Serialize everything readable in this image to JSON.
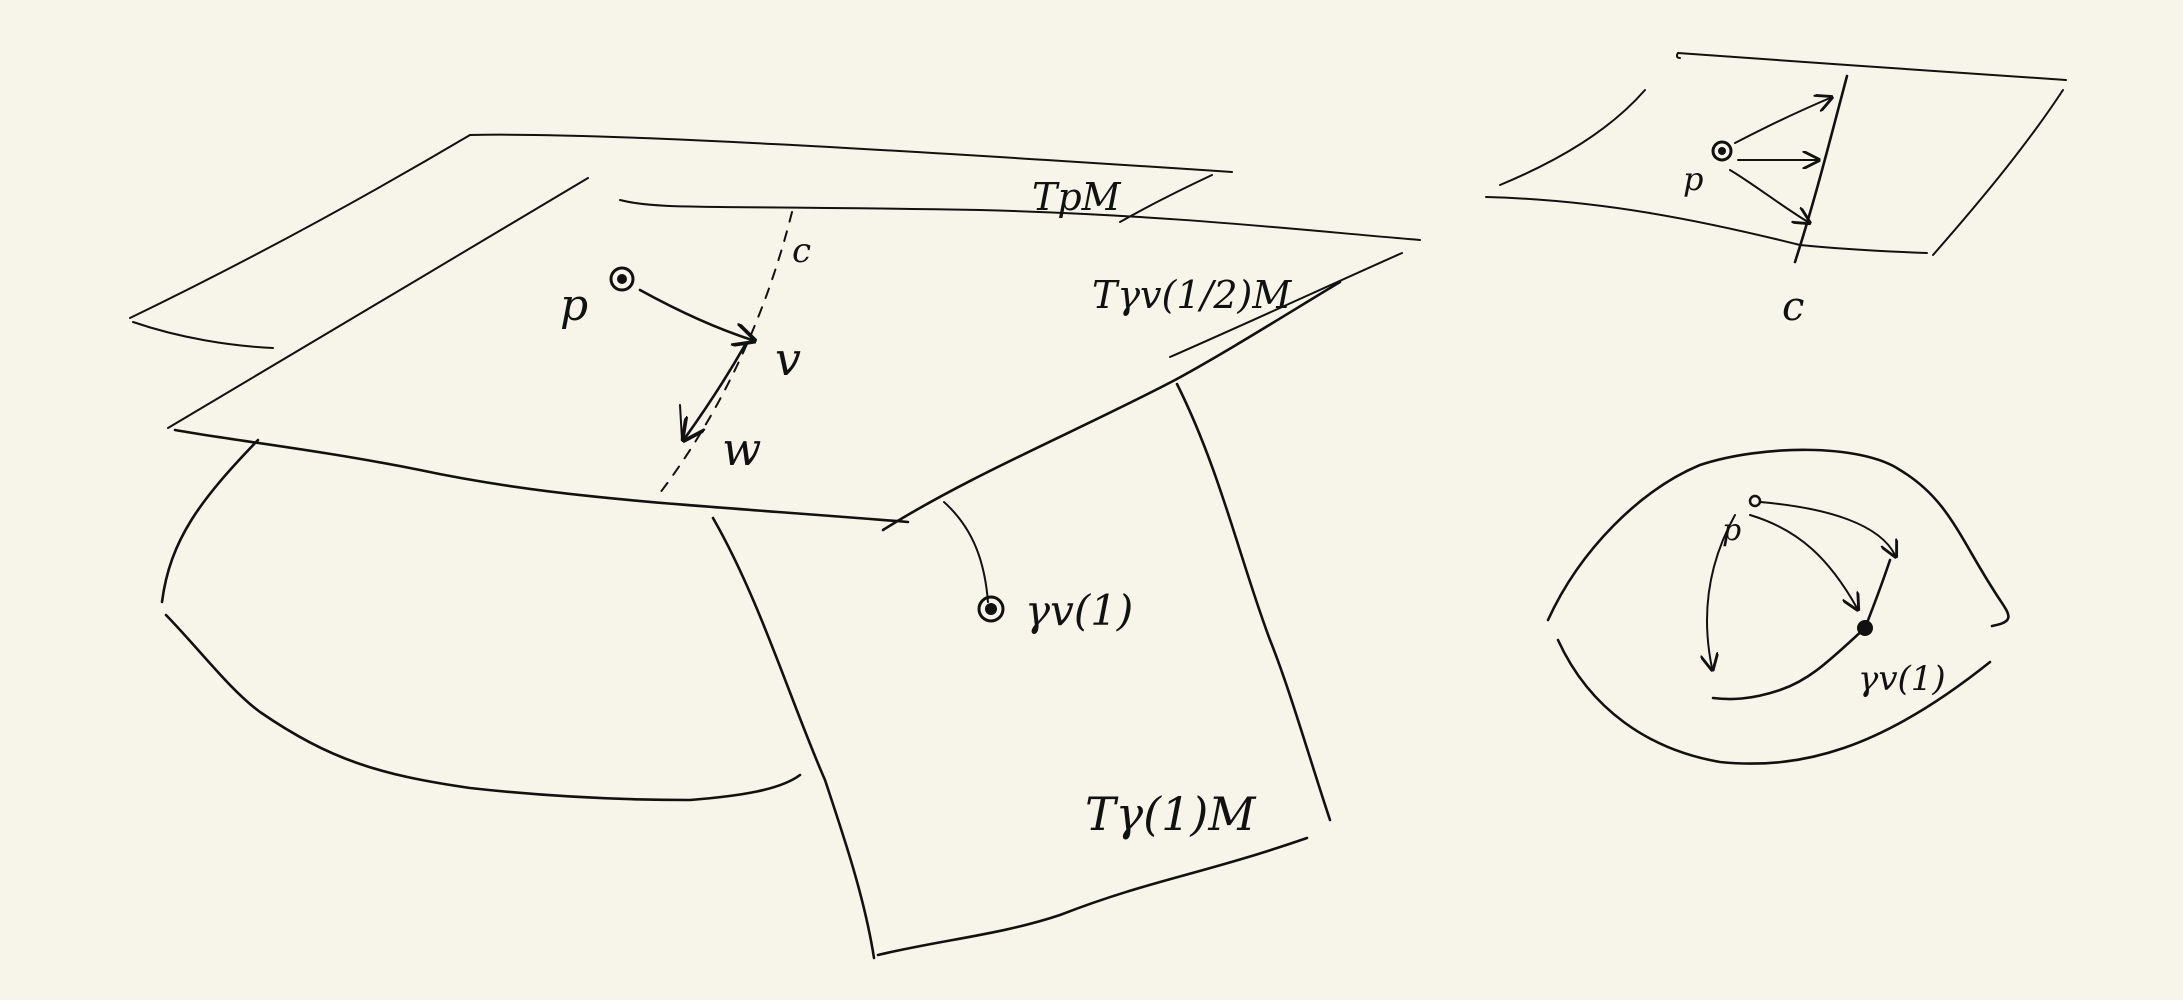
{
  "colors": {
    "background": "#f7f5ea",
    "ink": "#111111"
  },
  "main_diagram": {
    "label_p": "p",
    "label_c": "c",
    "label_v": "v",
    "label_w": "w",
    "label_tpm": "TpM",
    "label_tgamma_half": "Tγv(1/2)M",
    "label_gamma1": "γv(1)",
    "label_tgamma1": "Tγ(1)M"
  },
  "top_right_diagram": {
    "label_p": "p",
    "label_c": "c"
  },
  "bottom_right_diagram": {
    "label_p": "p",
    "label_gamma1": "γv(1)"
  }
}
